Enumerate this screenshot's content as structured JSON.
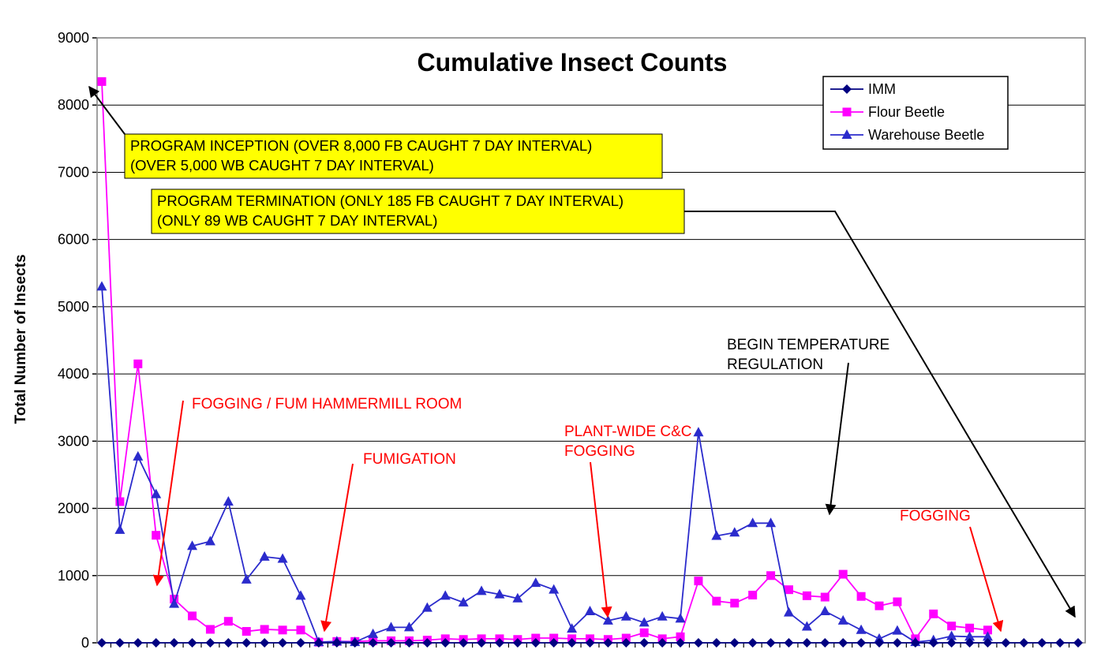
{
  "chart_data": {
    "type": "line",
    "title": "Cumulative Insect Counts",
    "ylabel": "Total Number of Insects",
    "xlabel": "",
    "ylim": [
      0,
      9000
    ],
    "yticks": [
      0,
      1000,
      2000,
      3000,
      4000,
      5000,
      6000,
      7000,
      8000,
      9000
    ],
    "grid": true,
    "legend_position": "top-right",
    "series": [
      {
        "name": "IMM",
        "color": "#000080",
        "marker": "diamond",
        "values": [
          0,
          0,
          0,
          0,
          0,
          0,
          0,
          0,
          0,
          0,
          0,
          0,
          0,
          0,
          0,
          0,
          0,
          0,
          0,
          0,
          0,
          0,
          0,
          0,
          0,
          0,
          0,
          0,
          0,
          0,
          0,
          0,
          0,
          0,
          0,
          0,
          0,
          0,
          0,
          0,
          0,
          0,
          0,
          0,
          0,
          0,
          0,
          0,
          0,
          0,
          0,
          0,
          0,
          0,
          0
        ]
      },
      {
        "name": "Flour Beetle",
        "color": "#ff00ff",
        "marker": "square",
        "values": [
          8350,
          2100,
          4150,
          1600,
          650,
          400,
          200,
          320,
          170,
          200,
          190,
          190,
          10,
          20,
          20,
          30,
          30,
          30,
          40,
          60,
          50,
          60,
          60,
          50,
          70,
          70,
          60,
          60,
          50,
          70,
          150,
          60,
          90,
          920,
          620,
          590,
          710,
          1000,
          790,
          700,
          680,
          1020,
          690,
          550,
          610,
          60,
          430,
          250,
          220,
          190
        ]
      },
      {
        "name": "Warehouse Beetle",
        "color": "#2b2bcc",
        "marker": "triangle",
        "values": [
          5300,
          1680,
          2770,
          2210,
          580,
          1440,
          1510,
          2100,
          940,
          1280,
          1250,
          700,
          10,
          20,
          10,
          130,
          230,
          230,
          520,
          700,
          600,
          770,
          720,
          660,
          890,
          790,
          210,
          470,
          330,
          390,
          300,
          390,
          360,
          3130,
          1590,
          1640,
          1780,
          1780,
          450,
          240,
          470,
          330,
          190,
          60,
          180,
          10,
          40,
          100,
          90,
          90
        ]
      }
    ],
    "annotations": {
      "inception_line1": "PROGRAM INCEPTION (OVER 8,000 FB CAUGHT 7 DAY INTERVAL)",
      "inception_line2": "(OVER 5,000 WB CAUGHT 7 DAY INTERVAL)",
      "termination_line1": "PROGRAM TERMINATION (ONLY 185 FB CAUGHT 7 DAY INTERVAL)",
      "termination_line2": "(ONLY 89 WB CAUGHT 7 DAY INTERVAL)",
      "fogging_fum": "FOGGING / FUM HAMMERMILL ROOM",
      "fumigation": "FUMIGATION",
      "plant_wide_line1": "PLANT-WIDE C&C",
      "plant_wide_line2": "FOGGING",
      "temp_line1": "BEGIN TEMPERATURE",
      "temp_line2": "REGULATION",
      "fogging": "FOGGING"
    },
    "colors": {
      "annotation_red": "#ff0000",
      "annotation_box": "#ffff00"
    }
  }
}
